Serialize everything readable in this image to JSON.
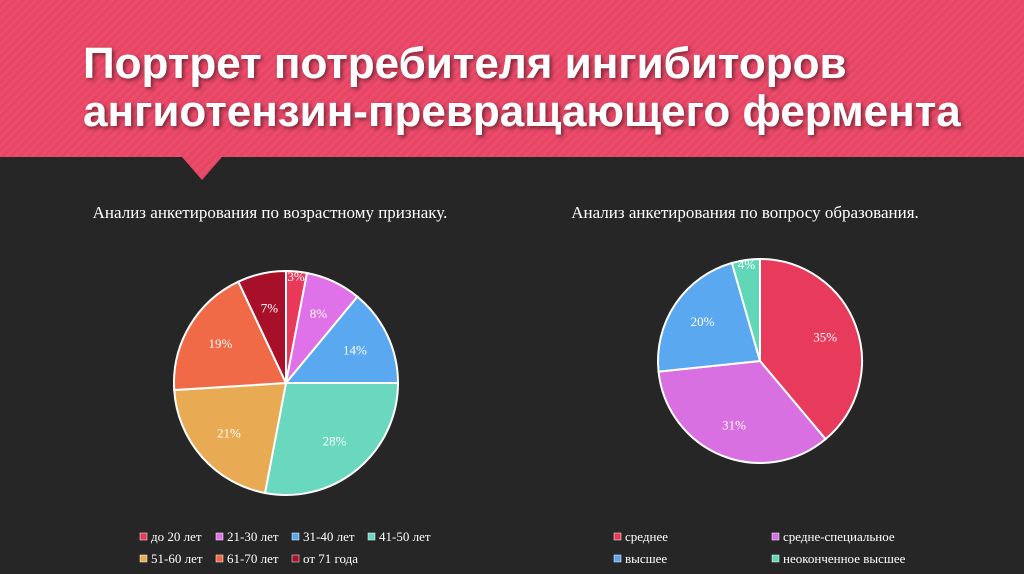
{
  "header": {
    "title_lines": [
      "Портрет потребителя ингибиторов",
      "ангиотензин-превращающего фермента"
    ]
  },
  "chart_data": [
    {
      "type": "pie",
      "title": "Анализ анкетирования по возрастному признаку.",
      "categories": [
        "до 20 лет",
        "21-30 лет",
        "31-40 лет",
        "41-50 лет",
        "51-60 лет",
        "61-70 лет",
        "от 71 года"
      ],
      "values": [
        3,
        8,
        14,
        28,
        21,
        19,
        7
      ],
      "value_labels": [
        "3%",
        "8%",
        "14%",
        "28%",
        "21%",
        "19%",
        "7%"
      ],
      "colors": [
        "#e8395a",
        "#df72e8",
        "#5aa8f0",
        "#6ad8be",
        "#e8aa52",
        "#f06a48",
        "#a8102a"
      ],
      "legend": "bottom"
    },
    {
      "type": "pie",
      "title": "Анализ анкетирования по вопросу образования.",
      "categories": [
        "среднее",
        "средне-специальное",
        "высшее",
        "неоконченное высшее"
      ],
      "values": [
        35,
        31,
        20,
        4
      ],
      "value_labels": [
        "35%",
        "31%",
        "20%",
        "4%"
      ],
      "colors": [
        "#e83a5a",
        "#d870e2",
        "#5aa8f0",
        "#60d8b8"
      ],
      "legend": "bottom"
    }
  ]
}
